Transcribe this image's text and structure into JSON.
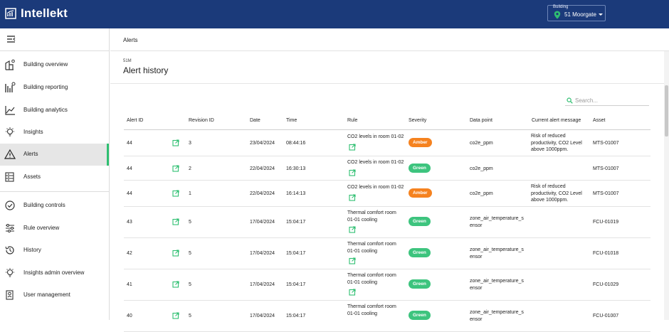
{
  "app": {
    "name": "Intellekt"
  },
  "building_selector": {
    "label": "Building",
    "value": "51 Moorgate"
  },
  "sidebar": {
    "items": [
      {
        "label": "Building overview",
        "icon": "building-overview-icon"
      },
      {
        "label": "Building reporting",
        "icon": "building-reporting-icon"
      },
      {
        "label": "Building analytics",
        "icon": "analytics-icon"
      },
      {
        "label": "Insights",
        "icon": "bulb-icon"
      },
      {
        "label": "Alerts",
        "icon": "warning-icon",
        "active": true
      },
      {
        "label": "Assets",
        "icon": "assets-icon"
      },
      {
        "label": "Building controls",
        "icon": "check-circle-icon"
      },
      {
        "label": "Rule overview",
        "icon": "sliders-icon"
      },
      {
        "label": "History",
        "icon": "history-icon"
      },
      {
        "label": "Insights admin overview",
        "icon": "bulb-icon"
      },
      {
        "label": "User management",
        "icon": "user-badge-icon"
      }
    ]
  },
  "breadcrumb": "Alerts",
  "page": {
    "code": "51M",
    "title": "Alert history"
  },
  "search": {
    "placeholder": "Search..."
  },
  "table": {
    "headers": [
      "Alert ID",
      "Revision ID",
      "Date",
      "Time",
      "Rule",
      "Severity",
      "Data point",
      "Current alert message",
      "Asset"
    ],
    "rows": [
      {
        "alert_id": "44",
        "revision_id": "3",
        "date": "23/04/2024",
        "time": "08:44:16",
        "rule": "CO2 levels in room 01-02",
        "severity": "Amber",
        "data_point": "co2e_ppm",
        "message": "Risk of reduced productivity, CO2 Level above 1000ppm.",
        "asset": "MTS-01007"
      },
      {
        "alert_id": "44",
        "revision_id": "2",
        "date": "22/04/2024",
        "time": "16:30:13",
        "rule": "CO2 levels in room 01-02",
        "severity": "Green",
        "data_point": "co2e_ppm",
        "message": "",
        "asset": "MTS-01007"
      },
      {
        "alert_id": "44",
        "revision_id": "1",
        "date": "22/04/2024",
        "time": "16:14:13",
        "rule": "CO2 levels in room 01-02",
        "severity": "Amber",
        "data_point": "co2e_ppm",
        "message": "Risk of reduced productivity, CO2 Level above 1000ppm.",
        "asset": "MTS-01007"
      },
      {
        "alert_id": "43",
        "revision_id": "5",
        "date": "17/04/2024",
        "time": "15:04:17",
        "rule": "Thermal comfort room 01-01 cooling",
        "severity": "Green",
        "data_point": "zone_air_temperature_sensor",
        "message": "",
        "asset": "FCU-01019"
      },
      {
        "alert_id": "42",
        "revision_id": "5",
        "date": "17/04/2024",
        "time": "15:04:17",
        "rule": "Thermal comfort room 01-01 cooling",
        "severity": "Green",
        "data_point": "zone_air_temperature_sensor",
        "message": "",
        "asset": "FCU-01018"
      },
      {
        "alert_id": "41",
        "revision_id": "5",
        "date": "17/04/2024",
        "time": "15:04:17",
        "rule": "Thermal comfort room 01-01 cooling",
        "severity": "Green",
        "data_point": "zone_air_temperature_sensor",
        "message": "",
        "asset": "FCU-01029"
      },
      {
        "alert_id": "40",
        "revision_id": "5",
        "date": "17/04/2024",
        "time": "15:04:17",
        "rule": "Thermal comfort room 01-01 cooling",
        "severity": "Green",
        "data_point": "zone_air_temperature_sensor",
        "message": "",
        "asset": "FCU-01007"
      }
    ]
  },
  "colors": {
    "header_bg": "#1b3a7a",
    "accent": "#2fbf71",
    "green": "#3dc47e",
    "amber": "#f5821f"
  }
}
